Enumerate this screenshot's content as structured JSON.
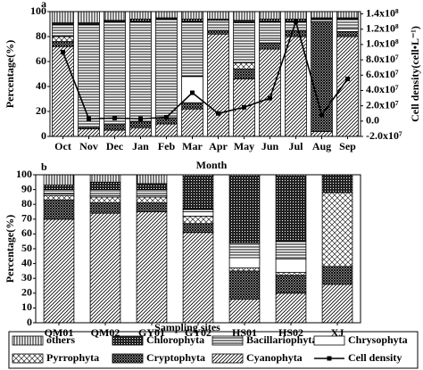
{
  "chart_data": [
    {
      "type": "bar",
      "label": "a",
      "ylabel": "Percentage(%)",
      "y2label": "Cell density(cell•L⁻¹)",
      "xlabel": "Month",
      "categories": [
        "Oct",
        "Nov",
        "Dec",
        "Jan",
        "Feb",
        "Mar",
        "Apr",
        "May",
        "Jun",
        "Jul",
        "Aug",
        "Sep"
      ],
      "ylim": [
        0,
        100
      ],
      "yticks": [
        0,
        20,
        40,
        60,
        80,
        100
      ],
      "y2lim": [
        -20000000,
        143000000
      ],
      "y2ticks": [
        {
          "value": -20000000,
          "label": "-2.0x10⁷"
        },
        {
          "value": 0,
          "label": "0.0"
        },
        {
          "value": 20000000,
          "label": "2.0x10⁷"
        },
        {
          "value": 40000000,
          "label": "4.0x10⁷"
        },
        {
          "value": 60000000,
          "label": "6.0x10⁷"
        },
        {
          "value": 80000000,
          "label": "8.0x10⁷"
        },
        {
          "value": 100000000,
          "label": "1.0x10⁸"
        },
        {
          "value": 120000000,
          "label": "1.2x10⁸"
        },
        {
          "value": 140000000,
          "label": "1.4x10⁸"
        }
      ],
      "legend": "bottom",
      "series": [
        {
          "name": "Cyanophyta",
          "pattern": "diagonal",
          "values": [
            72,
            6,
            5,
            7,
            10,
            22,
            82,
            46,
            70,
            80,
            4,
            80
          ]
        },
        {
          "name": "Cryptophyta",
          "pattern": "crosshatch",
          "values": [
            4,
            1,
            5,
            5,
            5,
            5,
            3,
            8,
            5,
            5,
            88,
            4
          ]
        },
        {
          "name": "Pyrrophyta",
          "pattern": "diagonal-light",
          "values": [
            4,
            0,
            0,
            0,
            0,
            0,
            0,
            5,
            0,
            0,
            0,
            0
          ]
        },
        {
          "name": "Chrysophyta",
          "pattern": "none",
          "values": [
            0,
            0,
            0,
            0,
            0,
            21,
            0,
            0,
            2,
            0,
            0,
            2
          ]
        },
        {
          "name": "Bacillariophyta",
          "pattern": "horizontal",
          "values": [
            10,
            83,
            82,
            80,
            79,
            44,
            8,
            32,
            15,
            7,
            2,
            8
          ]
        },
        {
          "name": "Chlorophyta",
          "pattern": "dots-dark",
          "values": [
            1,
            1,
            1,
            2,
            1,
            2,
            1,
            2,
            2,
            2,
            1,
            1
          ]
        },
        {
          "name": "others",
          "pattern": "vertical",
          "values": [
            9,
            9,
            7,
            6,
            5,
            6,
            6,
            7,
            6,
            6,
            5,
            5
          ]
        },
        {
          "name": "Cell density",
          "type": "line",
          "axis": "y2",
          "color": "#000000",
          "values": [
            90000000,
            3000000,
            4000000,
            3000000,
            5000000,
            37000000,
            10000000,
            18000000,
            30000000,
            130000000,
            8000000,
            55000000
          ]
        }
      ]
    },
    {
      "type": "bar",
      "label": "b",
      "ylabel": "Percentage(%)",
      "xlabel": "Sampling sites",
      "categories": [
        "QM01",
        "QM02",
        "GY01",
        "GY02",
        "HS01",
        "HS02",
        "XJ"
      ],
      "ylim": [
        0,
        100
      ],
      "yticks": [
        0,
        10,
        20,
        30,
        40,
        50,
        60,
        70,
        80,
        90,
        100
      ],
      "series": [
        {
          "pattern": "diagonal",
          "values": [
            70,
            74,
            75,
            61,
            16,
            20,
            26
          ]
        },
        {
          "pattern": "crosshatch",
          "values": [
            13,
            7,
            6,
            6,
            19,
            12,
            12
          ]
        },
        {
          "pattern": "diagonal-light",
          "values": [
            3,
            4,
            4,
            5,
            2,
            2,
            50
          ]
        },
        {
          "pattern": "none",
          "values": [
            1,
            1,
            1,
            3,
            7,
            9,
            0
          ]
        },
        {
          "pattern": "horizontal",
          "values": [
            3,
            4,
            4,
            2,
            10,
            12,
            0
          ]
        },
        {
          "pattern": "dots-dark",
          "values": [
            3,
            5,
            4,
            22,
            45,
            44,
            12
          ]
        },
        {
          "pattern": "vertical",
          "values": [
            7,
            5,
            6,
            1,
            1,
            1,
            0
          ]
        }
      ]
    }
  ]
}
